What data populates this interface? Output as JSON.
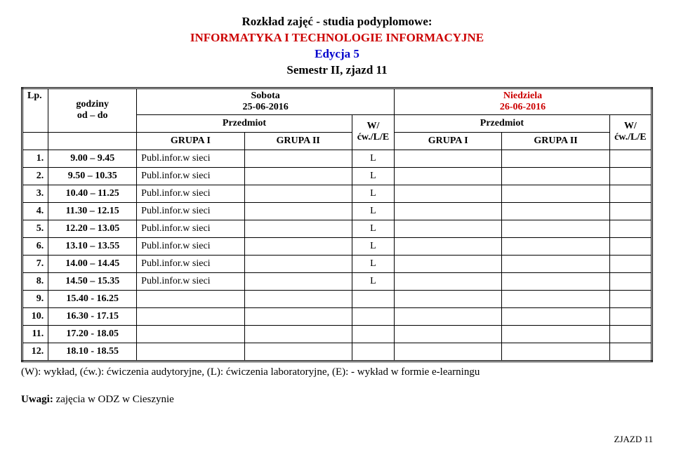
{
  "header": {
    "line1": "Rozkład zajęć - studia podyplomowe:",
    "line2": "INFORMATYKA I TECHNOLOGIE INFORMACYJNE",
    "line3": "Edycja 5",
    "line4": "Semestr II, zjazd 11"
  },
  "table": {
    "head": {
      "lp": "Lp.",
      "godziny": "godziny",
      "od_do": "od – do",
      "sobota": "Sobota",
      "sobota_date": "25-06-2016",
      "niedziela": "Niedziela",
      "niedziela_date": "26-06-2016",
      "przedmiot": "Przedmiot",
      "w": "W/",
      "cwle": "ćw./L/E",
      "grupa1": "GRUPA I",
      "grupa2": "GRUPA II"
    },
    "rows": [
      {
        "lp": "1.",
        "time": "9.00 – 9.45",
        "sat_g1": "Publ.infor.w sieci",
        "sat_g2": "",
        "sat_wl": "L",
        "sun_g1": "",
        "sun_g2": "",
        "sun_wl": ""
      },
      {
        "lp": "2.",
        "time": "9.50 – 10.35",
        "sat_g1": "Publ.infor.w sieci",
        "sat_g2": "",
        "sat_wl": "L",
        "sun_g1": "",
        "sun_g2": "",
        "sun_wl": ""
      },
      {
        "lp": "3.",
        "time": "10.40 – 11.25",
        "sat_g1": "Publ.infor.w sieci",
        "sat_g2": "",
        "sat_wl": "L",
        "sun_g1": "",
        "sun_g2": "",
        "sun_wl": ""
      },
      {
        "lp": "4.",
        "time": "11.30 – 12.15",
        "sat_g1": "Publ.infor.w sieci",
        "sat_g2": "",
        "sat_wl": "L",
        "sun_g1": "",
        "sun_g2": "",
        "sun_wl": ""
      },
      {
        "lp": "5.",
        "time": "12.20 – 13.05",
        "sat_g1": "Publ.infor.w sieci",
        "sat_g2": "",
        "sat_wl": "L",
        "sun_g1": "",
        "sun_g2": "",
        "sun_wl": ""
      },
      {
        "lp": "6.",
        "time": "13.10 – 13.55",
        "sat_g1": "Publ.infor.w sieci",
        "sat_g2": "",
        "sat_wl": "L",
        "sun_g1": "",
        "sun_g2": "",
        "sun_wl": ""
      },
      {
        "lp": "7.",
        "time": "14.00 – 14.45",
        "sat_g1": "Publ.infor.w sieci",
        "sat_g2": "",
        "sat_wl": "L",
        "sun_g1": "",
        "sun_g2": "",
        "sun_wl": ""
      },
      {
        "lp": "8.",
        "time": "14.50 – 15.35",
        "sat_g1": "Publ.infor.w sieci",
        "sat_g2": "",
        "sat_wl": "L",
        "sun_g1": "",
        "sun_g2": "",
        "sun_wl": ""
      },
      {
        "lp": "9.",
        "time": "15.40 - 16.25",
        "sat_g1": "",
        "sat_g2": "",
        "sat_wl": "",
        "sun_g1": "",
        "sun_g2": "",
        "sun_wl": ""
      },
      {
        "lp": "10.",
        "time": "16.30 - 17.15",
        "sat_g1": "",
        "sat_g2": "",
        "sat_wl": "",
        "sun_g1": "",
        "sun_g2": "",
        "sun_wl": ""
      },
      {
        "lp": "11.",
        "time": "17.20 - 18.05",
        "sat_g1": "",
        "sat_g2": "",
        "sat_wl": "",
        "sun_g1": "",
        "sun_g2": "",
        "sun_wl": ""
      },
      {
        "lp": "12.",
        "time": "18.10 - 18.55",
        "sat_g1": "",
        "sat_g2": "",
        "sat_wl": "",
        "sun_g1": "",
        "sun_g2": "",
        "sun_wl": ""
      }
    ]
  },
  "legend": "(W): wykład, (ćw.): ćwiczenia audytoryjne, (L): ćwiczenia laboratoryjne, (E): - wykład w formie e-learningu",
  "uwagi_label": "Uwagi:",
  "uwagi_text": "zajęcia w ODZ w Cieszynie",
  "footer": "ZJAZD 11",
  "colors": {
    "red": "#cc0000",
    "blue": "#0000cc",
    "black": "#000000",
    "bg": "#ffffff"
  }
}
